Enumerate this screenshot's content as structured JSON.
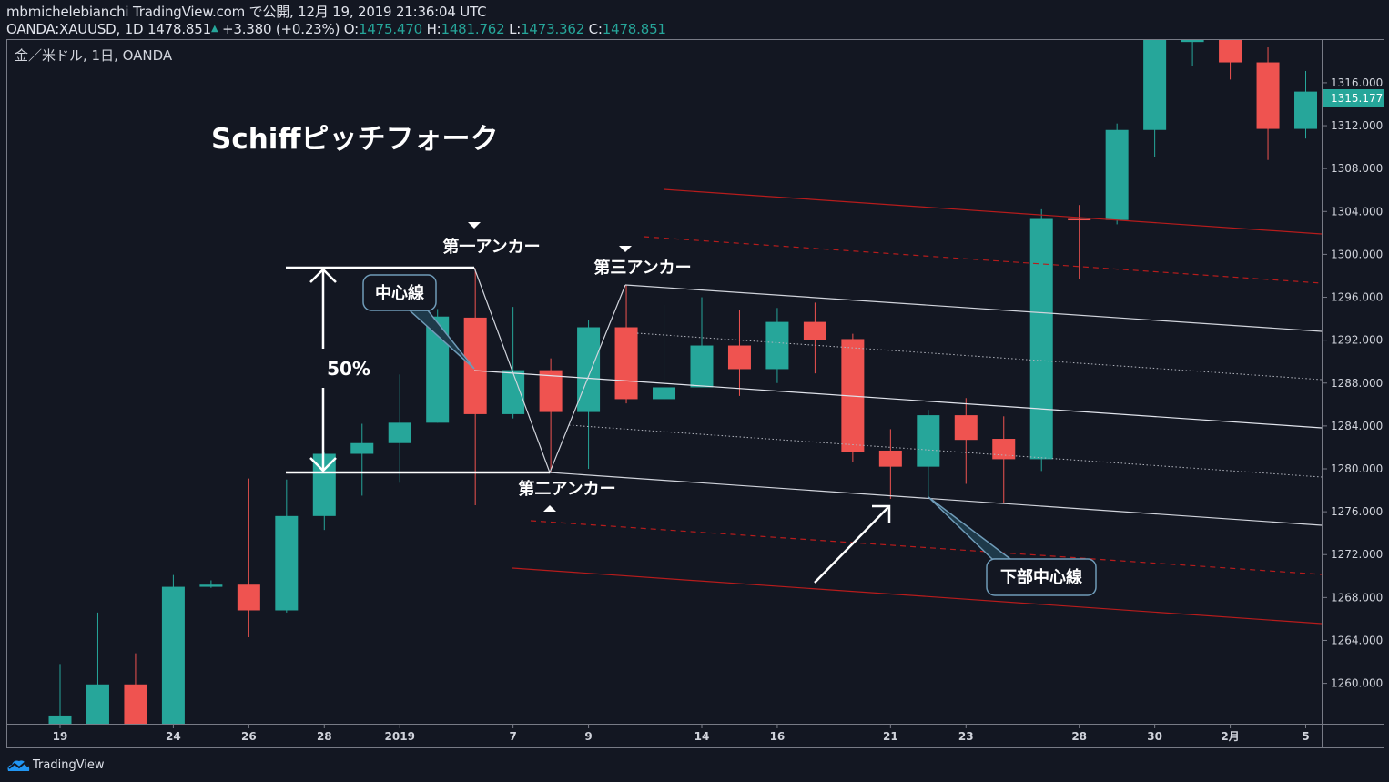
{
  "header": {
    "publish_line": "mbmichelebianchi TradingView.com で公開, 12月 19, 2019 21:36:04 UTC",
    "symbol": "OANDA:XAUUSD, 1D",
    "last": "1478.851",
    "change": "+3.380 (+0.23%)",
    "o_label": "O:",
    "o": "1475.470",
    "h_label": "H:",
    "h": "1481.762",
    "l_label": "L:",
    "l": "1473.362",
    "c_label": "C:",
    "c": "1478.851"
  },
  "legend": "金／米ドル, 1日, OANDA",
  "brand": "TradingView",
  "colors": {
    "bg": "#131722",
    "up": "#26a69a",
    "down": "#ef5350",
    "text": "#d1d4dc",
    "axis": "#787b86"
  },
  "annotations": {
    "title": "Schiffピッチフォーク",
    "anchor1": "第一アンカー",
    "anchor2": "第二アンカー",
    "anchor3": "第三アンカー",
    "median_callout": "中心線",
    "lower_callout": "下部中心線",
    "percent": "50%"
  },
  "chart_data": {
    "type": "candlestick",
    "title": "金／米ドル, 1日, OANDA",
    "ylim": [
      1256.5,
      1320
    ],
    "current_price": "1315.177",
    "price_ticks": [
      "1260.000",
      "1264.000",
      "1268.000",
      "1272.000",
      "1276.000",
      "1280.000",
      "1284.000",
      "1288.000",
      "1292.000",
      "1296.000",
      "1300.000",
      "1304.000",
      "1308.000",
      "1312.000",
      "1316.000"
    ],
    "time_ticks": [
      {
        "index": 0,
        "label": "19"
      },
      {
        "index": 3,
        "label": "24"
      },
      {
        "index": 5,
        "label": "26"
      },
      {
        "index": 7,
        "label": "28"
      },
      {
        "index": 9,
        "label": "2019"
      },
      {
        "index": 12,
        "label": "7"
      },
      {
        "index": 14,
        "label": "9"
      },
      {
        "index": 17,
        "label": "14"
      },
      {
        "index": 19,
        "label": "16"
      },
      {
        "index": 22,
        "label": "21"
      },
      {
        "index": 24,
        "label": "23"
      },
      {
        "index": 27,
        "label": "28"
      },
      {
        "index": 29,
        "label": "30"
      },
      {
        "index": 31,
        "label": "2月"
      },
      {
        "index": 33,
        "label": "5"
      }
    ],
    "candles": [
      [
        1256.0,
        1261.8,
        1255.0,
        1257.0
      ],
      [
        1256.0,
        1266.6,
        1255.0,
        1259.9
      ],
      [
        1259.9,
        1262.8,
        1255.0,
        1256.0
      ],
      [
        1256.0,
        1270.1,
        1255.0,
        1269.0
      ],
      [
        1269.0,
        1269.6,
        1268.9,
        1269.2
      ],
      [
        1269.2,
        1279.1,
        1264.3,
        1266.8
      ],
      [
        1266.8,
        1279.0,
        1266.6,
        1275.6
      ],
      [
        1275.6,
        1281.5,
        1274.3,
        1281.4
      ],
      [
        1281.4,
        1284.2,
        1277.5,
        1282.4
      ],
      [
        1282.4,
        1288.8,
        1278.7,
        1284.3
      ],
      [
        1284.3,
        1294.9,
        1284.3,
        1294.2
      ],
      [
        1294.1,
        1298.7,
        1276.6,
        1285.1
      ],
      [
        1285.1,
        1295.1,
        1284.7,
        1289.2
      ],
      [
        1289.2,
        1290.3,
        1279.7,
        1285.3
      ],
      [
        1285.3,
        1293.9,
        1280.0,
        1293.2
      ],
      [
        1293.2,
        1297.1,
        1286.1,
        1286.5
      ],
      [
        1286.5,
        1295.3,
        1286.4,
        1287.6
      ],
      [
        1287.6,
        1296.0,
        1287.6,
        1291.5
      ],
      [
        1291.5,
        1294.8,
        1286.8,
        1289.3
      ],
      [
        1289.3,
        1295.0,
        1288.0,
        1293.7
      ],
      [
        1293.7,
        1295.5,
        1288.9,
        1292.0
      ],
      [
        1292.1,
        1292.6,
        1280.6,
        1281.6
      ],
      [
        1281.7,
        1283.7,
        1277.2,
        1280.2
      ],
      [
        1280.2,
        1285.5,
        1277.2,
        1285.0
      ],
      [
        1285.0,
        1286.6,
        1278.6,
        1282.7
      ],
      [
        1282.8,
        1284.9,
        1276.8,
        1280.9
      ],
      [
        1280.9,
        1304.2,
        1279.8,
        1303.3
      ],
      [
        1303.3,
        1304.6,
        1297.7,
        1303.2
      ],
      [
        1303.2,
        1312.2,
        1302.8,
        1311.6
      ],
      [
        1311.6,
        1321.0,
        1309.1,
        1320.5
      ],
      [
        1319.8,
        1321.0,
        1317.6,
        1320.0
      ],
      [
        1320.5,
        1321.0,
        1316.3,
        1317.9
      ],
      [
        1317.9,
        1319.3,
        1308.8,
        1311.7
      ],
      [
        1311.7,
        1317.1,
        1310.8,
        1315.177
      ]
    ]
  }
}
